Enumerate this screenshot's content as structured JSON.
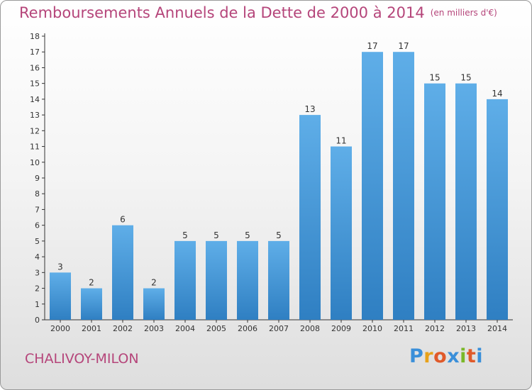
{
  "title": "Remboursements Annuels de la Dette de 2000 à 2014",
  "unit_label": "(en milliers d'€)",
  "commune": "CHALIVOY-MILON",
  "logo": {
    "letters": [
      "P",
      "r",
      "o",
      "x",
      "i",
      "t",
      "i"
    ],
    "colors": [
      "#3a8fd9",
      "#e8a21a",
      "#e05a2a",
      "#3a8fd9",
      "#7ab829",
      "#e05a2a",
      "#3a8fd9"
    ]
  },
  "colors": {
    "title": "#b5457a",
    "bar_top": "#5faee8",
    "bar_bottom": "#2f7fc2",
    "axis": "#333333",
    "grid": "#c8c8c8"
  },
  "chart_data": {
    "type": "bar",
    "title": "Remboursements Annuels de la Dette de 2000 à 2014",
    "xlabel": "",
    "ylabel": "en milliers d'€",
    "categories": [
      "2000",
      "2001",
      "2002",
      "2003",
      "2004",
      "2005",
      "2006",
      "2007",
      "2008",
      "2009",
      "2010",
      "2011",
      "2012",
      "2013",
      "2014"
    ],
    "values": [
      3,
      2,
      6,
      2,
      5,
      5,
      5,
      5,
      13,
      11,
      17,
      17,
      15,
      15,
      14
    ],
    "ylim": [
      0,
      18
    ],
    "yticks": [
      0,
      1,
      2,
      3,
      4,
      5,
      6,
      7,
      8,
      9,
      10,
      11,
      12,
      13,
      14,
      15,
      16,
      17,
      18
    ],
    "grid": false,
    "legend": "none"
  }
}
